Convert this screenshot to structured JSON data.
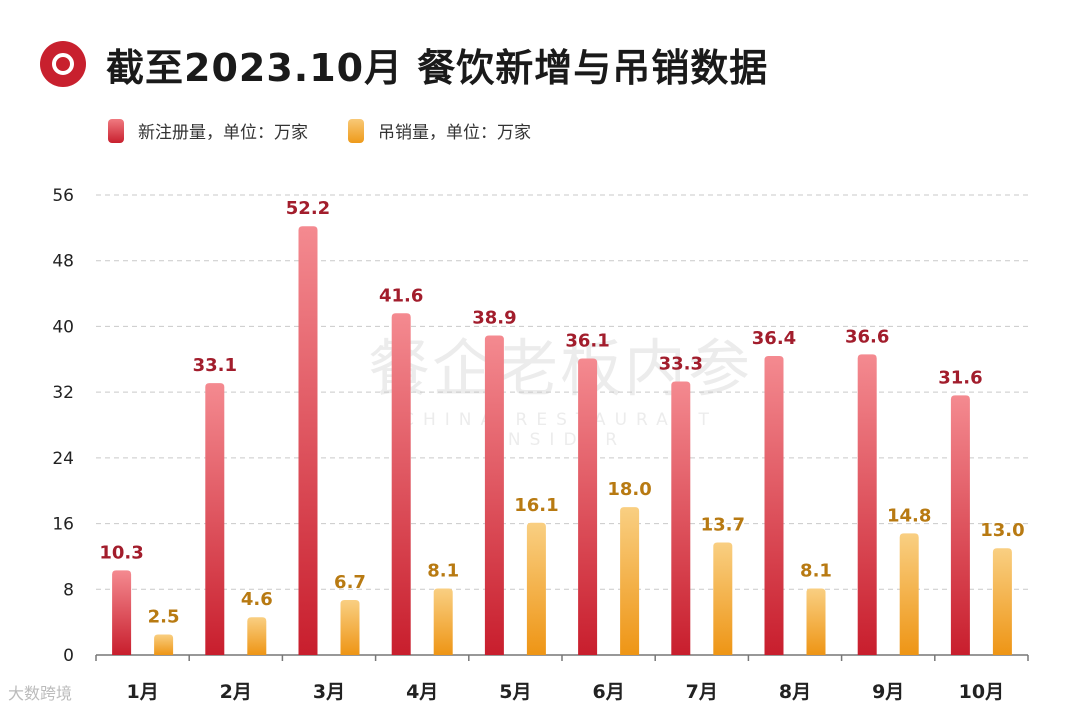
{
  "title": "截至2023.10月 餐饮新增与吊销数据",
  "legend": {
    "series1": "新注册量，单位：万家",
    "series2": "吊销量，单位：万家"
  },
  "watermark": {
    "main": "餐企老板内参",
    "sub": "CHINA RESTAURANT INSIDER"
  },
  "corner_mark": "大数跨境",
  "colors": {
    "series1_top": "#f48a90",
    "series1_bottom": "#c81e2d",
    "series2_top": "#f9cf82",
    "series2_bottom": "#ee9515",
    "series1_label": "#a21d2c",
    "series2_label": "#b87a12",
    "title_icon": "#c8202e"
  },
  "chart_data": {
    "type": "bar",
    "title": "截至2023.10月 餐饮新增与吊销数据",
    "categories": [
      "1月",
      "2月",
      "3月",
      "4月",
      "5月",
      "6月",
      "7月",
      "8月",
      "9月",
      "10月"
    ],
    "series": [
      {
        "name": "新注册量，单位：万家",
        "values": [
          10.3,
          33.1,
          52.2,
          41.6,
          38.9,
          36.1,
          33.3,
          36.4,
          36.6,
          31.6
        ]
      },
      {
        "name": "吊销量，单位：万家",
        "values": [
          2.5,
          4.6,
          6.7,
          8.1,
          16.1,
          18.0,
          13.7,
          8.1,
          14.8,
          13.0
        ]
      }
    ],
    "ylim": [
      0,
      56
    ],
    "yticks": [
      0,
      8,
      16,
      24,
      32,
      40,
      48,
      56
    ],
    "grid": true,
    "legend_position": "top-left",
    "xlabel": "",
    "ylabel": ""
  }
}
